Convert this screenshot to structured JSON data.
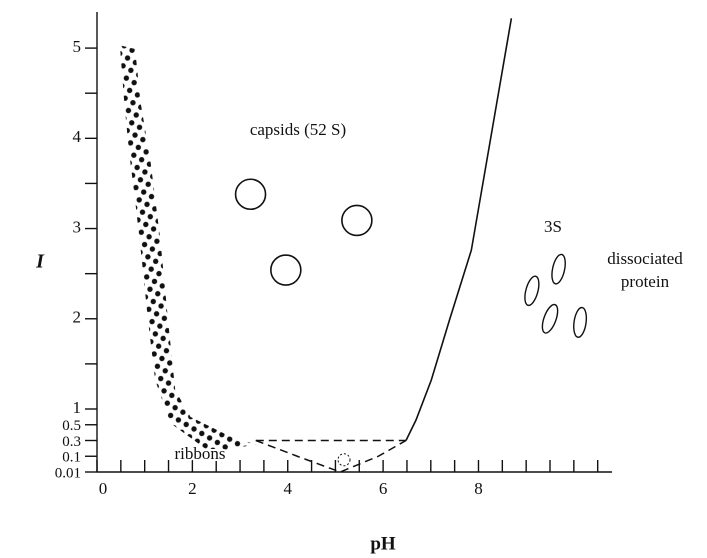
{
  "chart_data": {
    "type": "phase-diagram",
    "xlabel": "pH",
    "ylabel": "I",
    "xlim": [
      0,
      10.8
    ],
    "ylim": [
      0.01,
      5.4
    ],
    "xticks": [
      0,
      2,
      4,
      6,
      8
    ],
    "xminor": [
      0.5,
      1,
      1.5,
      2.5,
      3,
      3.5,
      4.5,
      5,
      5.5,
      6.5,
      7,
      7.5,
      8.5,
      9,
      9.5,
      10,
      10.5
    ],
    "yticks": [
      0.01,
      0.1,
      0.3,
      0.5,
      1,
      2,
      3,
      4,
      5
    ],
    "yminor": [
      1.5,
      2.5,
      3.5,
      4.5
    ],
    "boundary": {
      "x": [
        6.48,
        6.69,
        7.01,
        7.4,
        7.85,
        8.69
      ],
      "values": [
        0.3,
        0.65,
        1.32,
        2.0,
        2.76,
        5.33
      ]
    },
    "ribbon_top": {
      "x": [
        3.33,
        6.48
      ],
      "values": [
        0.3,
        0.3
      ]
    },
    "ribbon_bottom": {
      "x": [
        3.33,
        4.2,
        5.1,
        5.9,
        6.48
      ],
      "values": [
        0.3,
        0.1,
        0.01,
        0.1,
        0.3
      ]
    },
    "ribbon_marker": {
      "x": 5.18,
      "value": 0.08
    },
    "dotted_region": {
      "x": [
        0.48,
        0.57,
        0.67,
        0.8,
        0.94,
        1.07,
        1.22,
        1.54,
        2.38,
        3.33,
        2.8,
        1.96,
        1.64,
        1.49,
        1.33,
        1.12,
        0.91,
        0.8
      ],
      "values": [
        5.03,
        4.41,
        3.86,
        3.31,
        2.65,
        1.98,
        1.32,
        0.55,
        0.15,
        0.25,
        0.35,
        0.75,
        1.21,
        1.98,
        2.87,
        3.75,
        4.41,
        4.99
      ]
    },
    "capsids": {
      "x": [
        3.22,
        3.96,
        5.45
      ],
      "values": [
        3.38,
        2.54,
        3.09
      ]
    },
    "protein": {
      "x": [
        9.12,
        9.68,
        9.5,
        10.13
      ],
      "values": [
        2.31,
        2.55,
        2.0,
        1.96
      ]
    },
    "annotations": {
      "capsids": "capsids (52 S)",
      "sedimentation": "3S",
      "dissociated": [
        "dissociated",
        "protein"
      ],
      "ribbons": "ribbons"
    }
  }
}
